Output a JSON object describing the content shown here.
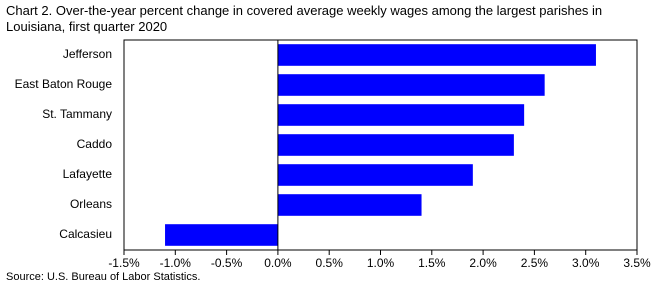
{
  "chart_data": {
    "type": "hbar",
    "title": "Chart 2. Over-the-year  percent change in covered  average  weekly wages among the largest parishes in Louisiana, first quarter 2020",
    "source": "Source: U.S. Bureau of Labor Statistics.",
    "categories": [
      "Jefferson",
      "East Baton Rouge",
      "St. Tammany",
      "Caddo",
      "Lafayette",
      "Orleans",
      "Calcasieu"
    ],
    "values": [
      3.1,
      2.6,
      2.4,
      2.3,
      1.9,
      1.4,
      -1.1
    ],
    "color": "#0000ff",
    "xlim": [
      -1.5,
      3.5
    ],
    "xticks": [
      {
        "value": -1.5,
        "label": "-1.5%"
      },
      {
        "value": -1.0,
        "label": "-1.0%"
      },
      {
        "value": -0.5,
        "label": "-0.5%"
      },
      {
        "value": 0,
        "label": "0.0%"
      },
      {
        "value": 0.5,
        "label": "0.5%"
      },
      {
        "value": 1.0,
        "label": "1.0%"
      },
      {
        "value": 1.5,
        "label": "1.5%"
      },
      {
        "value": 2.0,
        "label": "2.0%"
      },
      {
        "value": 2.5,
        "label": "2.5%"
      },
      {
        "value": 3.0,
        "label": "3.0%"
      },
      {
        "value": 3.5,
        "label": "3.5%"
      }
    ],
    "grid": false
  }
}
